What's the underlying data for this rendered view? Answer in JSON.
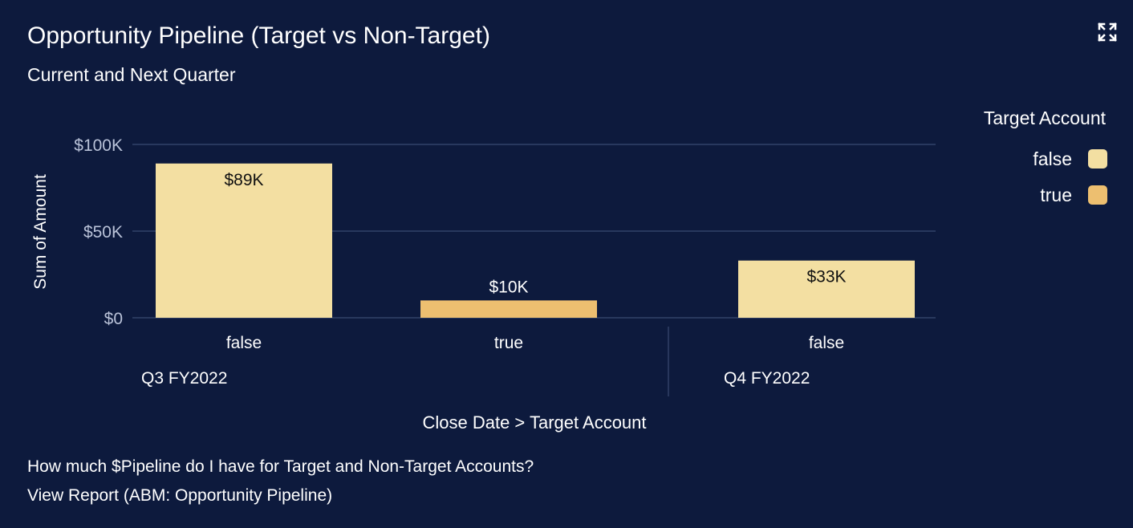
{
  "header": {
    "title": "Opportunity Pipeline (Target vs Non-Target)",
    "subtitle": "Current and Next Quarter",
    "expand_icon": "expand-icon"
  },
  "legend": {
    "title": "Target Account",
    "items": [
      {
        "label": "false",
        "color": "#f3dfa2"
      },
      {
        "label": "true",
        "color": "#edbf70"
      }
    ]
  },
  "chart_data": {
    "type": "bar",
    "ylabel": "Sum of Amount",
    "xlabel": "Close Date  >  Target Account",
    "ylim": [
      0,
      100000
    ],
    "yticks": [
      {
        "value": 0,
        "label": "$0"
      },
      {
        "value": 50000,
        "label": "$50K"
      },
      {
        "value": 100000,
        "label": "$100K"
      }
    ],
    "grid": true,
    "legend_position": "top-right",
    "groups": [
      {
        "name": "Q3 FY2022",
        "bars": [
          {
            "category": "false",
            "value": 89000,
            "label": "$89K",
            "color": "#f3dfa2"
          },
          {
            "category": "true",
            "value": 10000,
            "label": "$10K",
            "color": "#edbf70"
          }
        ]
      },
      {
        "name": "Q4 FY2022",
        "bars": [
          {
            "category": "false",
            "value": 33000,
            "label": "$33K",
            "color": "#f3dfa2"
          }
        ]
      }
    ]
  },
  "footer": {
    "question": "How much $Pipeline do I have for Target and Non-Target Accounts?",
    "report_link": "View Report (ABM: Opportunity Pipeline)"
  }
}
